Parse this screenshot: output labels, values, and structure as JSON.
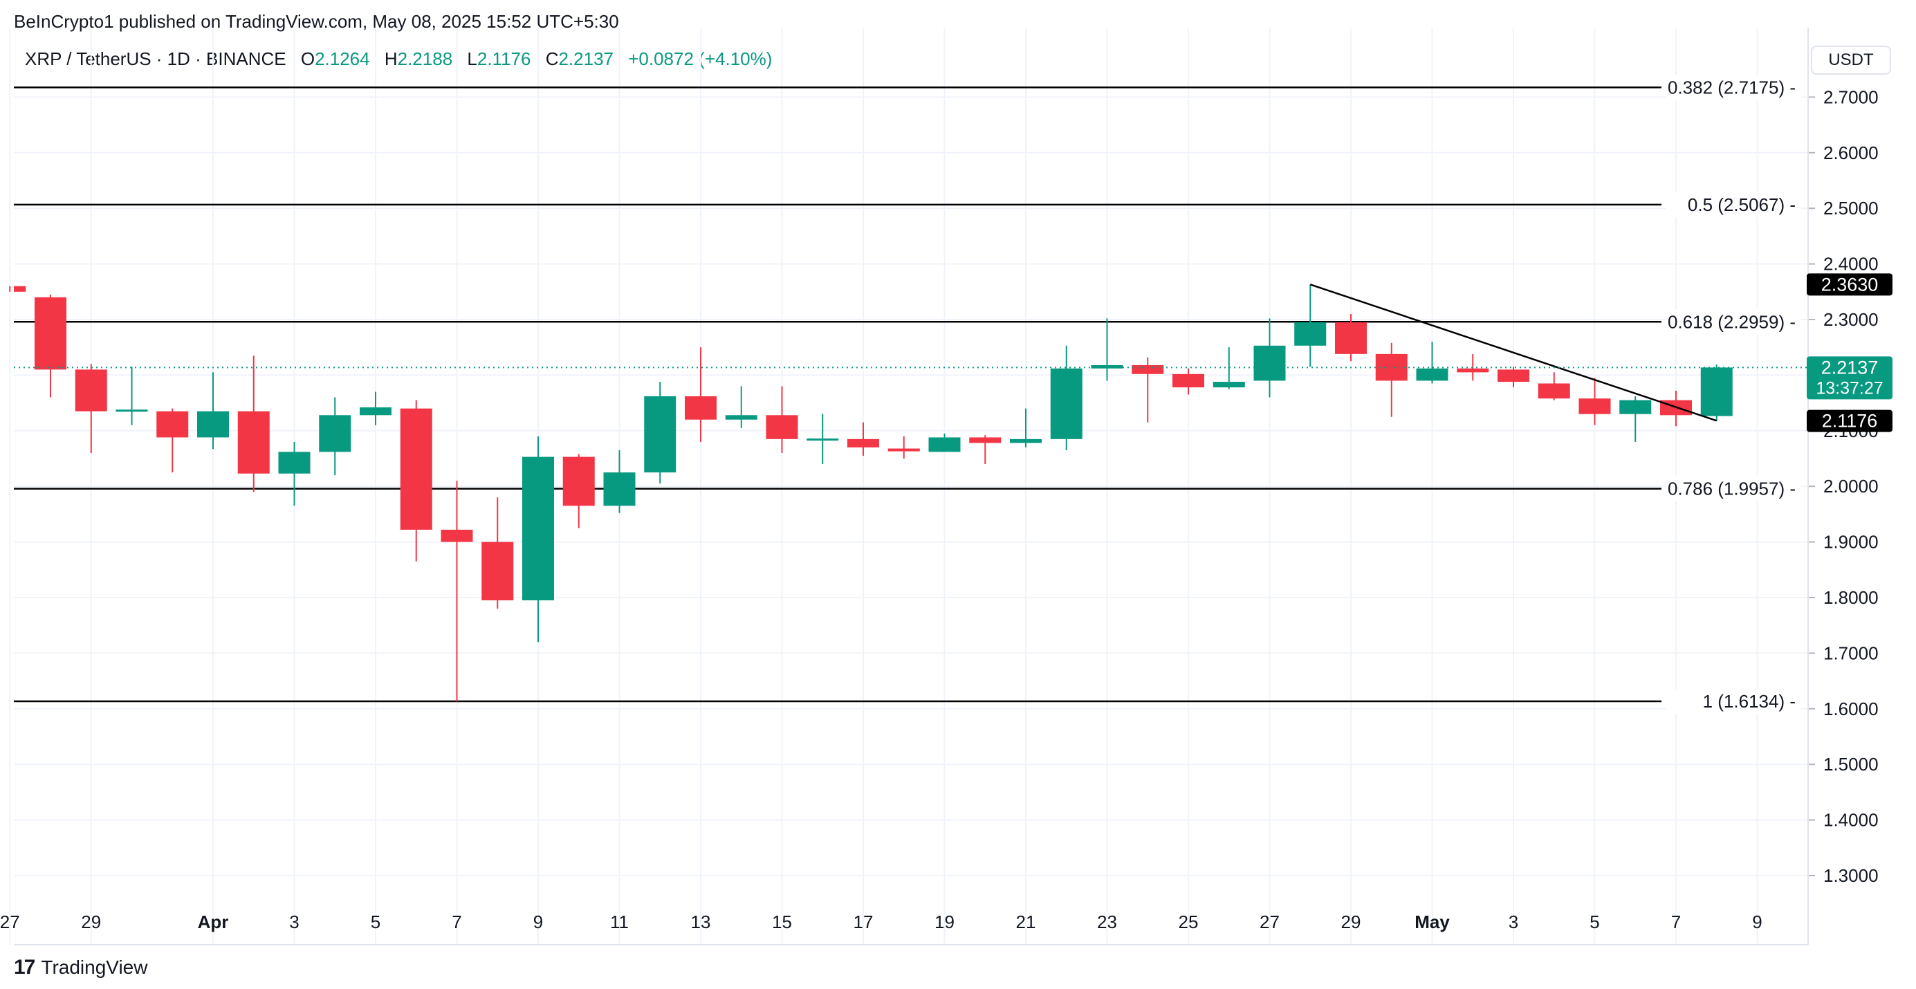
{
  "header": {
    "published": "BeInCrypto1 published on TradingView.com, May 08, 2025 15:52 UTC+5:30"
  },
  "symbol": {
    "name": "XRP / TetherUS · 1D · BINANCE",
    "o_label": "O",
    "o_value": "2.1264",
    "h_label": "H",
    "h_value": "2.2188",
    "l_label": "L",
    "l_value": "2.1176",
    "c_label": "C",
    "c_value": "2.2137",
    "change": "+0.0872 (+4.10%)"
  },
  "currency": "USDT",
  "footer": {
    "brand": "TradingView"
  },
  "colors": {
    "up": "#089981",
    "down": "#f23645",
    "grid": "#f0f3fa",
    "text": "#131722"
  },
  "chart_data": {
    "type": "candlestick",
    "title": "XRP / TetherUS · 1D · BINANCE",
    "ylim": [
      1.22,
      2.87
    ],
    "y_ticks": [
      "1.3000",
      "1.4000",
      "1.5000",
      "1.6000",
      "1.7000",
      "1.8000",
      "1.9000",
      "2.0000",
      "2.1000",
      "2.2000",
      "2.3000",
      "2.4000",
      "2.5000",
      "2.6000",
      "2.7000"
    ],
    "x_ticks": [
      {
        "day": -1,
        "label": "27",
        "bold": false
      },
      {
        "day": 1,
        "label": "29",
        "bold": false
      },
      {
        "day": 4,
        "label": "Apr",
        "bold": true
      },
      {
        "day": 6,
        "label": "3",
        "bold": false
      },
      {
        "day": 8,
        "label": "5",
        "bold": false
      },
      {
        "day": 10,
        "label": "7",
        "bold": false
      },
      {
        "day": 12,
        "label": "9",
        "bold": false
      },
      {
        "day": 14,
        "label": "11",
        "bold": false
      },
      {
        "day": 16,
        "label": "13",
        "bold": false
      },
      {
        "day": 18,
        "label": "15",
        "bold": false
      },
      {
        "day": 20,
        "label": "17",
        "bold": false
      },
      {
        "day": 22,
        "label": "19",
        "bold": false
      },
      {
        "day": 24,
        "label": "21",
        "bold": false
      },
      {
        "day": 26,
        "label": "23",
        "bold": false
      },
      {
        "day": 28,
        "label": "25",
        "bold": false
      },
      {
        "day": 30,
        "label": "27",
        "bold": false
      },
      {
        "day": 32,
        "label": "29",
        "bold": false
      },
      {
        "day": 34,
        "label": "May",
        "bold": true
      },
      {
        "day": 36,
        "label": "3",
        "bold": false
      },
      {
        "day": 38,
        "label": "5",
        "bold": false
      },
      {
        "day": 40,
        "label": "7",
        "bold": false
      },
      {
        "day": 42,
        "label": "9",
        "bold": false
      }
    ],
    "candles": [
      {
        "day": -1,
        "o": 2.36,
        "h": 2.36,
        "l": 2.35,
        "c": 2.35
      },
      {
        "day": 0,
        "o": 2.34,
        "h": 2.345,
        "l": 2.16,
        "c": 2.21
      },
      {
        "day": 1,
        "o": 2.21,
        "h": 2.22,
        "l": 2.06,
        "c": 2.135
      },
      {
        "day": 2,
        "o": 2.135,
        "h": 2.215,
        "l": 2.11,
        "c": 2.138
      },
      {
        "day": 3,
        "o": 2.135,
        "h": 2.14,
        "l": 2.025,
        "c": 2.088
      },
      {
        "day": 4,
        "o": 2.088,
        "h": 2.205,
        "l": 2.067,
        "c": 2.135
      },
      {
        "day": 5,
        "o": 2.135,
        "h": 2.235,
        "l": 1.99,
        "c": 2.023
      },
      {
        "day": 6,
        "o": 2.023,
        "h": 2.08,
        "l": 1.965,
        "c": 2.062
      },
      {
        "day": 7,
        "o": 2.062,
        "h": 2.16,
        "l": 2.02,
        "c": 2.128
      },
      {
        "day": 8,
        "o": 2.128,
        "h": 2.17,
        "l": 2.11,
        "c": 2.142
      },
      {
        "day": 9,
        "o": 2.14,
        "h": 2.155,
        "l": 1.865,
        "c": 1.922
      },
      {
        "day": 10,
        "o": 1.922,
        "h": 2.01,
        "l": 1.613,
        "c": 1.9
      },
      {
        "day": 11,
        "o": 1.9,
        "h": 1.98,
        "l": 1.78,
        "c": 1.795
      },
      {
        "day": 12,
        "o": 1.795,
        "h": 2.09,
        "l": 1.72,
        "c": 2.053
      },
      {
        "day": 13,
        "o": 2.053,
        "h": 2.058,
        "l": 1.925,
        "c": 1.965
      },
      {
        "day": 14,
        "o": 1.965,
        "h": 2.065,
        "l": 1.952,
        "c": 2.025
      },
      {
        "day": 15,
        "o": 2.025,
        "h": 2.188,
        "l": 2.005,
        "c": 2.162
      },
      {
        "day": 16,
        "o": 2.162,
        "h": 2.25,
        "l": 2.08,
        "c": 2.12
      },
      {
        "day": 17,
        "o": 2.12,
        "h": 2.18,
        "l": 2.105,
        "c": 2.128
      },
      {
        "day": 18,
        "o": 2.128,
        "h": 2.18,
        "l": 2.06,
        "c": 2.085
      },
      {
        "day": 19,
        "o": 2.085,
        "h": 2.13,
        "l": 2.04,
        "c": 2.086
      },
      {
        "day": 20,
        "o": 2.085,
        "h": 2.115,
        "l": 2.055,
        "c": 2.07
      },
      {
        "day": 21,
        "o": 2.068,
        "h": 2.09,
        "l": 2.05,
        "c": 2.063
      },
      {
        "day": 22,
        "o": 2.062,
        "h": 2.095,
        "l": 2.062,
        "c": 2.088
      },
      {
        "day": 23,
        "o": 2.088,
        "h": 2.092,
        "l": 2.04,
        "c": 2.078
      },
      {
        "day": 24,
        "o": 2.078,
        "h": 2.14,
        "l": 2.07,
        "c": 2.085
      },
      {
        "day": 25,
        "o": 2.085,
        "h": 2.253,
        "l": 2.065,
        "c": 2.212
      },
      {
        "day": 26,
        "o": 2.212,
        "h": 2.302,
        "l": 2.19,
        "c": 2.218
      },
      {
        "day": 27,
        "o": 2.218,
        "h": 2.232,
        "l": 2.115,
        "c": 2.202
      },
      {
        "day": 28,
        "o": 2.202,
        "h": 2.212,
        "l": 2.165,
        "c": 2.178
      },
      {
        "day": 29,
        "o": 2.178,
        "h": 2.25,
        "l": 2.175,
        "c": 2.188
      },
      {
        "day": 30,
        "o": 2.19,
        "h": 2.302,
        "l": 2.16,
        "c": 2.253
      },
      {
        "day": 31,
        "o": 2.253,
        "h": 2.363,
        "l": 2.215,
        "c": 2.295
      },
      {
        "day": 32,
        "o": 2.295,
        "h": 2.31,
        "l": 2.225,
        "c": 2.238
      },
      {
        "day": 33,
        "o": 2.238,
        "h": 2.258,
        "l": 2.125,
        "c": 2.19
      },
      {
        "day": 34,
        "o": 2.19,
        "h": 2.26,
        "l": 2.185,
        "c": 2.212
      },
      {
        "day": 35,
        "o": 2.212,
        "h": 2.238,
        "l": 2.19,
        "c": 2.205
      },
      {
        "day": 36,
        "o": 2.21,
        "h": 2.215,
        "l": 2.178,
        "c": 2.188
      },
      {
        "day": 37,
        "o": 2.185,
        "h": 2.205,
        "l": 2.155,
        "c": 2.158
      },
      {
        "day": 38,
        "o": 2.158,
        "h": 2.195,
        "l": 2.11,
        "c": 2.13
      },
      {
        "day": 39,
        "o": 2.13,
        "h": 2.162,
        "l": 2.08,
        "c": 2.155
      },
      {
        "day": 40,
        "o": 2.155,
        "h": 2.172,
        "l": 2.108,
        "c": 2.128
      },
      {
        "day": 41,
        "o": 2.1264,
        "h": 2.2188,
        "l": 2.1176,
        "c": 2.2137
      }
    ],
    "fib_levels": [
      {
        "value": 2.7175,
        "label": "0.382 (2.7175)"
      },
      {
        "value": 2.5067,
        "label": "0.5 (2.5067)"
      },
      {
        "value": 2.2959,
        "label": "0.618 (2.2959)"
      },
      {
        "value": 1.9957,
        "label": "0.786 (1.9957)"
      },
      {
        "value": 1.6134,
        "label": "1 (1.6134)"
      }
    ],
    "trendline": {
      "from": {
        "day": 31,
        "value": 2.363
      },
      "to": {
        "day": 41,
        "value": 2.118
      }
    },
    "current_price": {
      "value": 2.2137,
      "label": "2.2137",
      "countdown": "13:37:27"
    },
    "high_marker": {
      "value": 2.363,
      "label": "2.3630"
    },
    "low_marker": {
      "value": 2.1176,
      "label": "2.1176"
    }
  }
}
